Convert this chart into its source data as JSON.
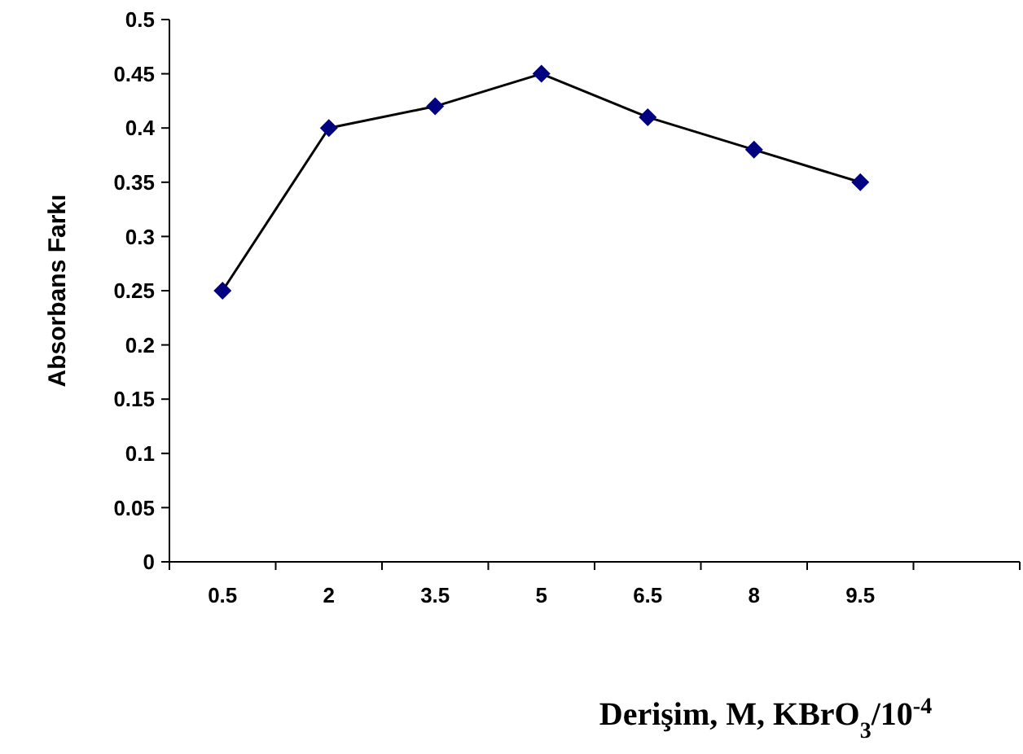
{
  "chart_data": {
    "type": "line",
    "xlabel": "Derişim, M, KBrO$_{3}$/10$^{-4}$",
    "ylabel": "Absorbans Farkı",
    "categories": [
      "0.5",
      "2",
      "3.5",
      "5",
      "6.5",
      "8",
      "9.5",
      null
    ],
    "series": [
      {
        "color": "#000080",
        "values": [
          0.25,
          0.4,
          0.42,
          0.45,
          0.41,
          0.38,
          0.35,
          null
        ]
      }
    ],
    "ylim": [
      0,
      0.5
    ],
    "yticks": [
      0,
      0.05,
      0.1,
      0.15,
      0.2,
      0.25,
      0.3,
      0.35,
      0.4,
      0.45,
      0.5
    ],
    "grid": false,
    "marker": "diamond",
    "line_style": "solid"
  }
}
